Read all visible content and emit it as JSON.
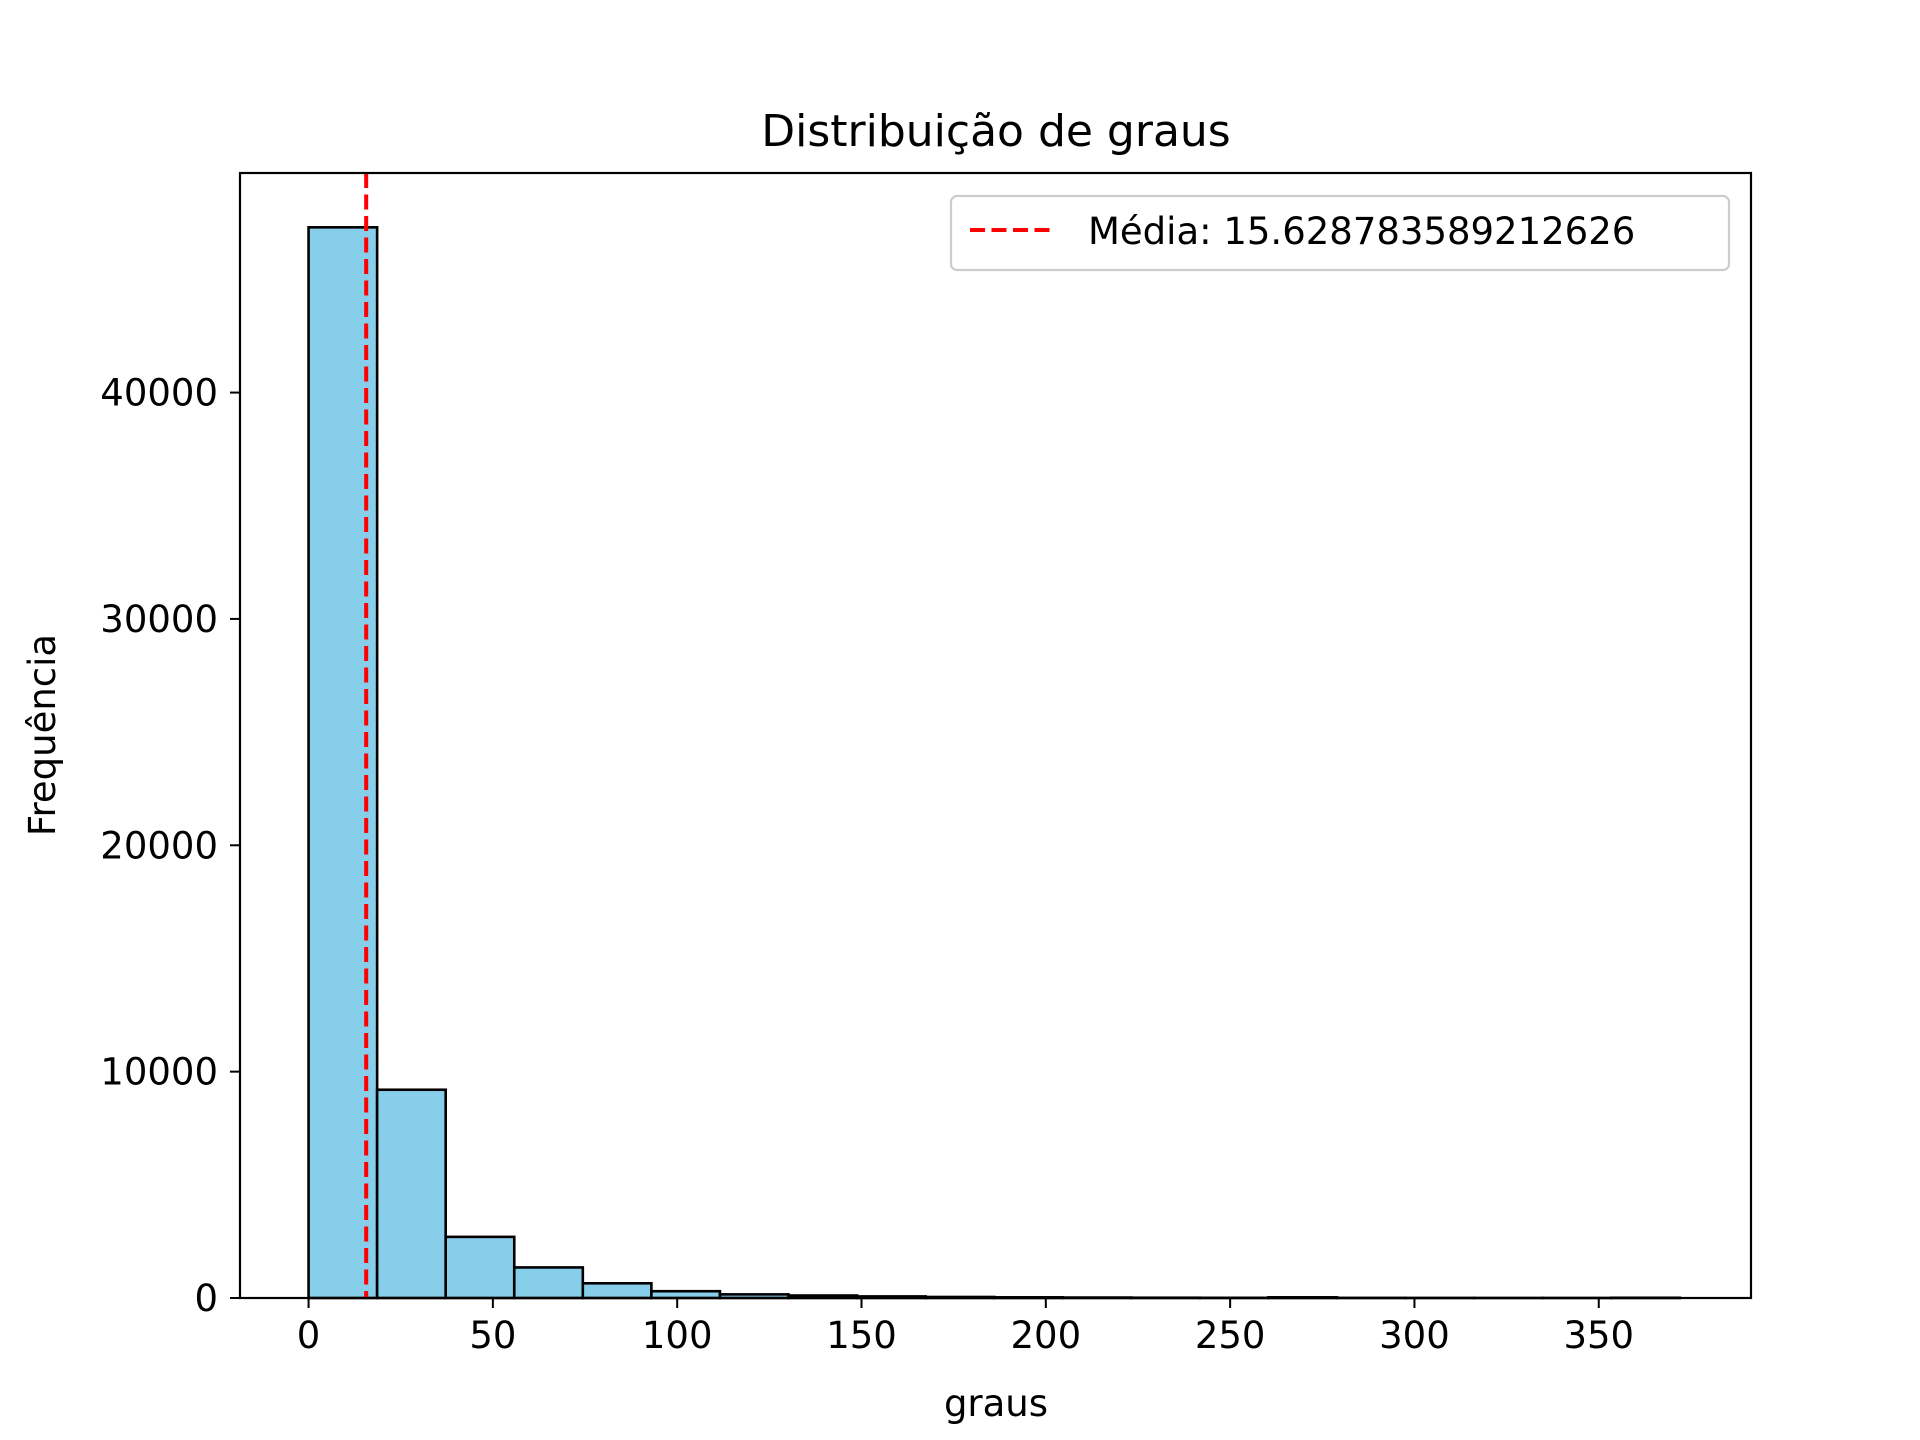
{
  "chart_data": {
    "type": "bar",
    "title": "Distribuição de graus",
    "xlabel": "graus",
    "ylabel": "Frequência",
    "xlim": [
      -18.6,
      391.3
    ],
    "ylim": [
      0,
      49700
    ],
    "x_ticks": [
      0,
      50,
      100,
      150,
      200,
      250,
      300,
      350
    ],
    "y_ticks": [
      0,
      10000,
      20000,
      30000,
      40000
    ],
    "bin_edges": [
      0,
      18.6,
      37.2,
      55.8,
      74.4,
      93.0,
      111.6,
      130.2,
      148.8,
      167.4,
      186.0,
      204.6,
      223.2,
      241.8,
      260.4,
      279.0,
      297.6,
      316.2,
      334.8,
      353.4,
      372.0
    ],
    "values": [
      47300,
      9200,
      2700,
      1350,
      650,
      300,
      160,
      110,
      70,
      45,
      30,
      20,
      12,
      8,
      30,
      5,
      3,
      2,
      2,
      10
    ],
    "bar_color": "#87ceeb",
    "edge_color": "#000000",
    "mean_line": {
      "x": 15.628783589212626,
      "color": "#ff0000",
      "style": "dashed",
      "label": "Média: 15.628783589212626"
    },
    "legend_position": "upper right",
    "grid": false
  }
}
